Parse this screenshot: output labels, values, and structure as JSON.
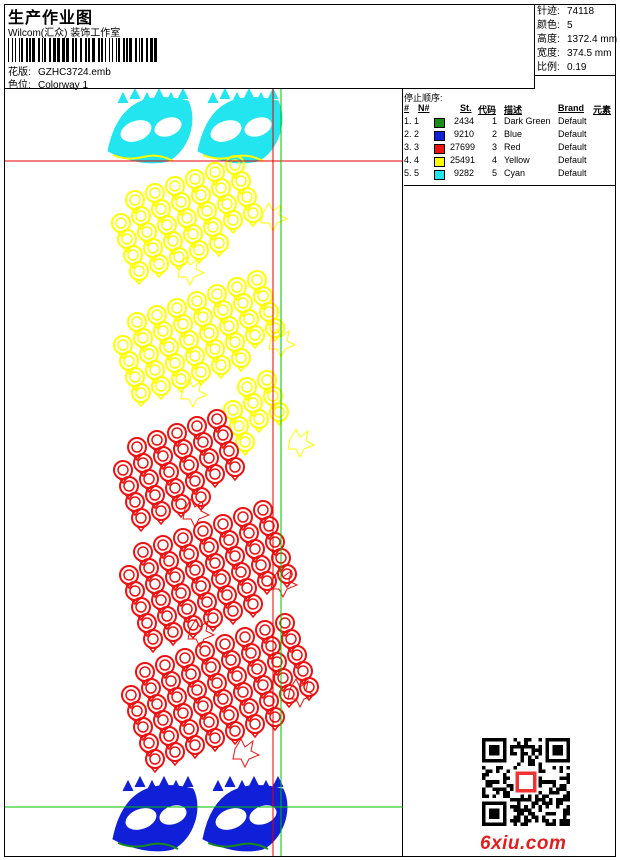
{
  "header": {
    "title": "生产作业图",
    "company": "Wilcom(汇众) 装饰工作室",
    "design_label": "花版:",
    "design_value": "GZHC3724.emb",
    "colorway_label": "色位:",
    "colorway_value": "Colorway 1"
  },
  "stats": [
    {
      "label": "针迹:",
      "value": "74118"
    },
    {
      "label": "颜色:",
      "value": "5"
    },
    {
      "label": "高度:",
      "value": "1372.4 mm"
    },
    {
      "label": "宽度:",
      "value": "374.5 mm"
    },
    {
      "label": "比例:",
      "value": "0.19"
    }
  ],
  "legend": {
    "title": "停止顺序:",
    "headers": {
      "num": "#",
      "n": "N#",
      "st": "St.",
      "code": "代码",
      "desc": "描述",
      "brand": "Brand",
      "elem": "元素"
    },
    "rows": [
      {
        "num": "1. 1",
        "color": "#1a8a1a",
        "st": "2434",
        "code": "1",
        "desc": "Dark Green",
        "brand": "Default"
      },
      {
        "num": "2. 2",
        "color": "#1020d8",
        "st": "9210",
        "code": "2",
        "desc": "Blue",
        "brand": "Default"
      },
      {
        "num": "3. 3",
        "color": "#ee1111",
        "st": "27699",
        "code": "3",
        "desc": "Red",
        "brand": "Default"
      },
      {
        "num": "4. 4",
        "color": "#ffff00",
        "st": "25491",
        "code": "4",
        "desc": "Yellow",
        "brand": "Default"
      },
      {
        "num": "5. 5",
        "color": "#22e5ef",
        "st": "9282",
        "code": "5",
        "desc": "Cyan",
        "brand": "Default"
      }
    ]
  },
  "colors": {
    "cyan": "#22e5ef",
    "yellow": "#ffff00",
    "red": "#ee1111",
    "blue": "#1020d8",
    "green": "#1a8a1a",
    "guide_red": "#e60000",
    "guide_green": "#00c000"
  },
  "watermark": "6xiu.com"
}
